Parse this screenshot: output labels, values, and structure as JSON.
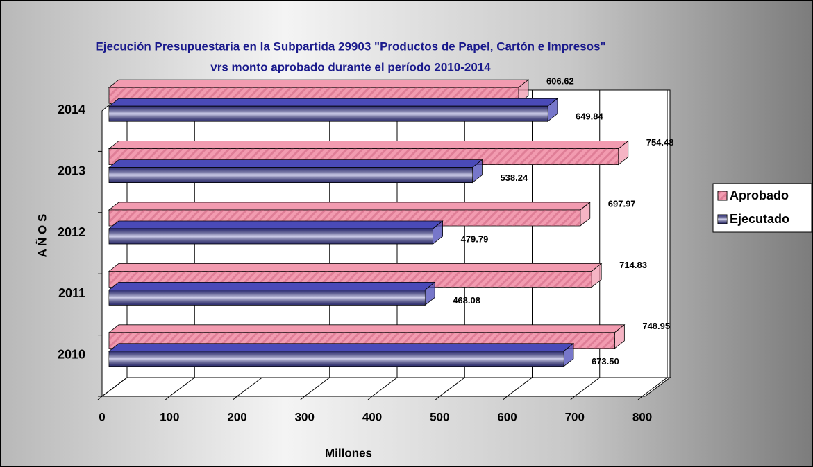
{
  "chart_data": {
    "type": "bar",
    "orientation": "horizontal",
    "title": "Ejecución Presupuestaria en la Subpartida 29903 \"Productos de Papel, Cartón e Impresos\"",
    "subtitle": "vrs monto aprobado durante el período 2010-2014",
    "x_label": "Millones",
    "y_label": "A Ñ O S",
    "categories": [
      "2010",
      "2011",
      "2012",
      "2013",
      "2014"
    ],
    "series": [
      {
        "name": "Aprobado",
        "color": "#f29bb0",
        "values": [
          748.95,
          714.83,
          697.97,
          754.48,
          606.62
        ]
      },
      {
        "name": "Ejecutado",
        "color": "#4a4ab8",
        "values": [
          673.5,
          468.08,
          479.79,
          538.24,
          649.84
        ],
        "value_labels": [
          "673.50",
          "468.08",
          "479.79",
          "538.24",
          "649.84"
        ]
      }
    ],
    "xlim": [
      0,
      800
    ],
    "xticks": [
      0,
      100,
      200,
      300,
      400,
      500,
      600,
      700,
      800
    ],
    "grid": true,
    "legend": "right"
  }
}
